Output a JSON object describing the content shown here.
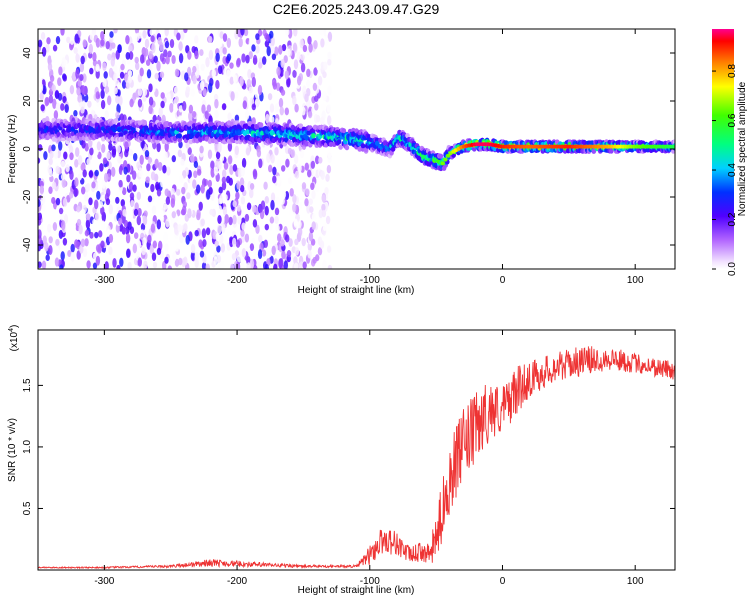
{
  "title": "C2E6.2025.243.09.47.G29",
  "chart_data": [
    {
      "type": "heatmap",
      "title": "C2E6.2025.243.09.47.G29",
      "xlabel": "Height of straight line (km)",
      "ylabel": "Frequency (Hz)",
      "xlim": [
        -350,
        130
      ],
      "ylim": [
        -50,
        50
      ],
      "xticks": [
        -300,
        -200,
        -100,
        0,
        100
      ],
      "yticks": [
        -40,
        -20,
        0,
        20,
        40
      ],
      "colorbar": {
        "label": "Normalized spectral amplitude",
        "range": [
          0,
          0.97
        ],
        "ticks": [
          0.0,
          0.2,
          0.4,
          0.6,
          0.8
        ],
        "tick_labels": [
          "0.0",
          "0.2",
          "0.4",
          "0.6",
          "0.8"
        ]
      },
      "ridge": {
        "x": [
          -350,
          -300,
          -250,
          -200,
          -160,
          -130,
          -110,
          -95,
          -85,
          -78,
          -70,
          -60,
          -50,
          -45,
          -40,
          -30,
          -20,
          -10,
          0,
          20,
          50,
          80,
          100,
          130
        ],
        "y": [
          8,
          8,
          7,
          7,
          6,
          5,
          4,
          2,
          0,
          5,
          2,
          -3,
          -5,
          -6,
          -2,
          1,
          2,
          2,
          1,
          1,
          1,
          1,
          1,
          1
        ],
        "amplitude": [
          0.3,
          0.35,
          0.4,
          0.45,
          0.5,
          0.5,
          0.5,
          0.45,
          0.4,
          0.55,
          0.5,
          0.6,
          0.65,
          0.6,
          0.6,
          0.8,
          0.9,
          0.9,
          0.85,
          0.8,
          0.85,
          0.75,
          0.6,
          0.5
        ]
      }
    },
    {
      "type": "line",
      "xlabel": "Height of straight line (km)",
      "ylabel": "SNR (10 * v/v)",
      "yscale_label": "(x10",
      "yscale_exp": "4",
      "yscale_close": ")",
      "xlim": [
        -350,
        130
      ],
      "ylim": [
        0,
        1.95
      ],
      "xticks": [
        -300,
        -200,
        -100,
        0,
        100
      ],
      "yticks": [
        0.5,
        1.0,
        1.5
      ],
      "ytick_labels": [
        "0.5",
        "1.0",
        "1.5"
      ],
      "color": "#ee3333",
      "series": [
        {
          "name": "SNR",
          "x": [
            -350,
            -300,
            -250,
            -220,
            -200,
            -150,
            -110,
            -100,
            -90,
            -80,
            -70,
            -60,
            -55,
            -50,
            -45,
            -40,
            -30,
            -20,
            -10,
            0,
            10,
            20,
            40,
            60,
            80,
            100,
            130
          ],
          "values": [
            0.02,
            0.02,
            0.03,
            0.06,
            0.05,
            0.03,
            0.03,
            0.12,
            0.25,
            0.22,
            0.12,
            0.15,
            0.12,
            0.25,
            0.5,
            0.75,
            1.0,
            1.15,
            1.3,
            1.3,
            1.45,
            1.55,
            1.65,
            1.7,
            1.72,
            1.68,
            1.62
          ],
          "noise": [
            0.005,
            0.006,
            0.01,
            0.03,
            0.025,
            0.01,
            0.01,
            0.08,
            0.12,
            0.1,
            0.07,
            0.08,
            0.09,
            0.2,
            0.25,
            0.3,
            0.3,
            0.3,
            0.25,
            0.2,
            0.2,
            0.15,
            0.12,
            0.12,
            0.1,
            0.08,
            0.08
          ]
        }
      ]
    }
  ]
}
